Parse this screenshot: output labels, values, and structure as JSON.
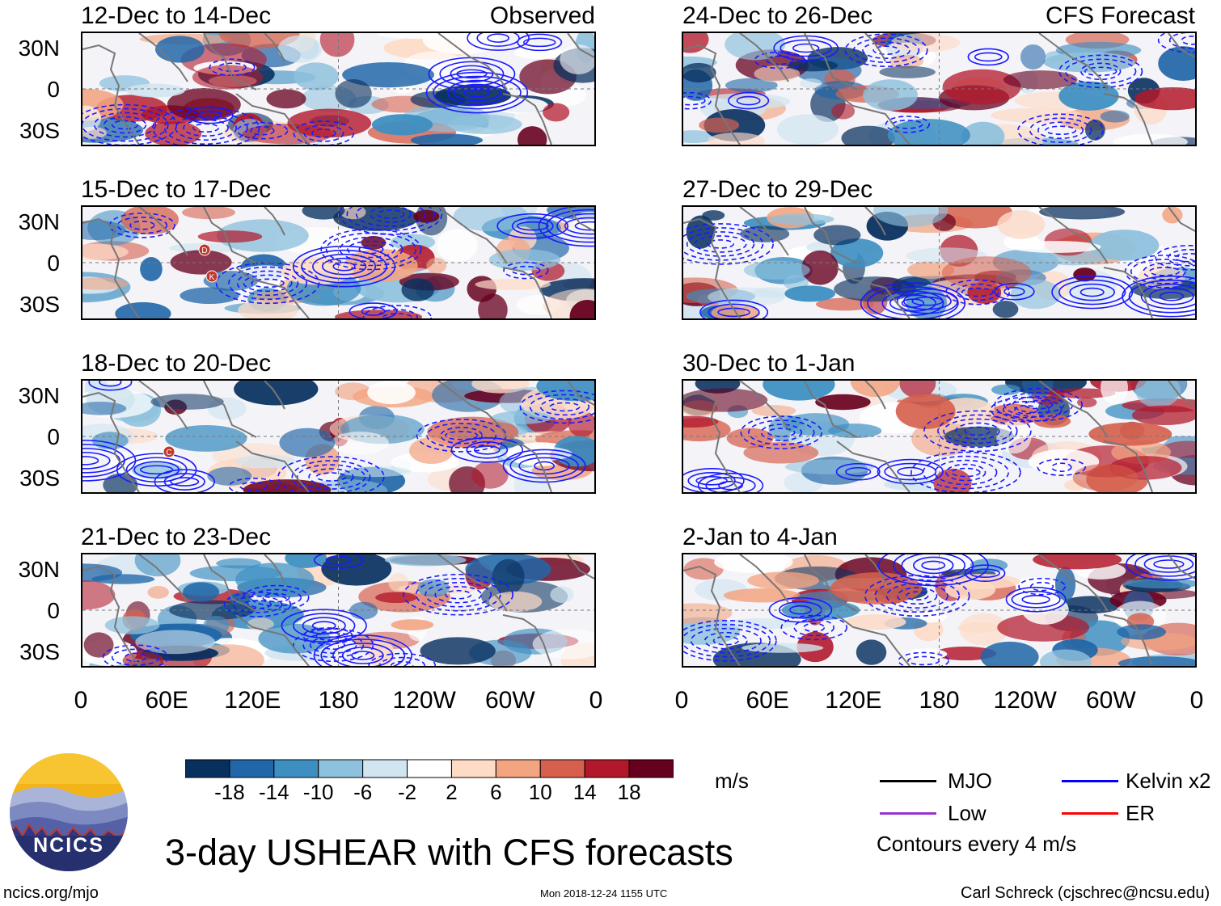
{
  "panels": [
    {
      "id": "p1",
      "date": "12-Dec to 14-Dec",
      "label": "Observed"
    },
    {
      "id": "p2",
      "date": "15-Dec to 17-Dec",
      "label": ""
    },
    {
      "id": "p3",
      "date": "18-Dec to 20-Dec",
      "label": ""
    },
    {
      "id": "p4",
      "date": "21-Dec to 23-Dec",
      "label": ""
    },
    {
      "id": "p5",
      "date": "24-Dec to 26-Dec",
      "label": "CFS Forecast"
    },
    {
      "id": "p6",
      "date": "27-Dec to 29-Dec",
      "label": ""
    },
    {
      "id": "p7",
      "date": "30-Dec to 1-Jan",
      "label": ""
    },
    {
      "id": "p8",
      "date": "2-Jan to 4-Jan",
      "label": ""
    }
  ],
  "lat_ticks": [
    "30N",
    "0",
    "30S"
  ],
  "lon_ticks": [
    "0",
    "60E",
    "120E",
    "180",
    "120W",
    "60W",
    "0"
  ],
  "colorbar": {
    "colors": [
      "#08305f",
      "#2066a8",
      "#3d8fc2",
      "#8ec1dd",
      "#d1e5f0",
      "#ffffff",
      "#fddbc7",
      "#f3a481",
      "#d6604d",
      "#b2182b",
      "#67001f"
    ],
    "labels": [
      "-18",
      "-14",
      "-10",
      "-6",
      "-2",
      "2",
      "6",
      "10",
      "14",
      "18"
    ],
    "units": "m/s"
  },
  "legend": {
    "items": [
      {
        "name": "MJO",
        "color": "#000000"
      },
      {
        "name": "Kelvin x2",
        "color": "#0000ff"
      },
      {
        "name": "Low",
        "color": "#9933cc"
      },
      {
        "name": "ER",
        "color": "#ff0000"
      }
    ],
    "note": "Contours every 4 m/s"
  },
  "title": "3-day USHEAR with CFS forecasts",
  "logo_text": "NCICS",
  "footer": {
    "url": "ncics.org/mjo",
    "timestamp": "Mon 2018-12-24 1155 UTC",
    "credit": "Carl Schreck (cjschrec@ncsu.edu)"
  },
  "storm_markers": [
    {
      "panel": "p2",
      "letter": "D"
    },
    {
      "panel": "p2",
      "letter": "K"
    },
    {
      "panel": "p3",
      "letter": "C"
    }
  ]
}
